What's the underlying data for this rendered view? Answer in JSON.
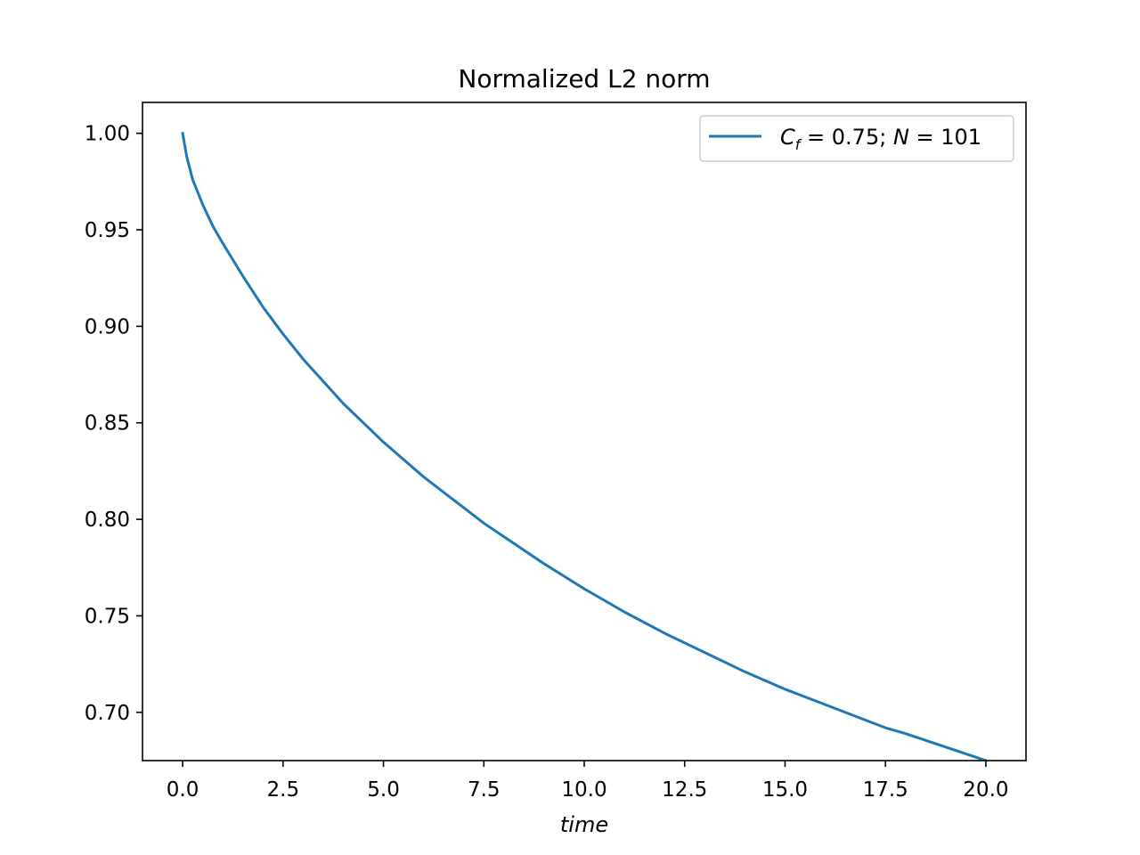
{
  "chart_data": {
    "type": "line",
    "title": "Normalized L2 norm",
    "xlabel": "time",
    "ylabel": "",
    "xlim": [
      -1.0,
      21.0
    ],
    "ylim": [
      0.675,
      1.016
    ],
    "x_ticks": [
      "0.0",
      "2.5",
      "5.0",
      "7.5",
      "10.0",
      "12.5",
      "15.0",
      "17.5",
      "20.0"
    ],
    "y_ticks": [
      "0.70",
      "0.75",
      "0.80",
      "0.85",
      "0.90",
      "0.95",
      "1.00"
    ],
    "grid": false,
    "legend_position": "top-right",
    "legend": {
      "var1": "C",
      "sub1": "f",
      "val1": " = 0.75;  ",
      "var2": "N",
      "val2": " = 101"
    },
    "series": [
      {
        "color": "#1f77b4",
        "x": [
          0,
          0.1,
          0.25,
          0.5,
          0.75,
          1.0,
          1.5,
          2.0,
          2.5,
          3.0,
          4.0,
          5.0,
          6.0,
          7.0,
          7.5,
          8.0,
          9.0,
          10.0,
          11.0,
          12.0,
          12.5,
          13.0,
          14.0,
          15.0,
          16.0,
          17.0,
          17.5,
          18.0,
          19.0,
          20.0
        ],
        "y": [
          1.0,
          0.988,
          0.976,
          0.963,
          0.952,
          0.943,
          0.926,
          0.91,
          0.896,
          0.883,
          0.86,
          0.84,
          0.822,
          0.806,
          0.798,
          0.791,
          0.777,
          0.764,
          0.752,
          0.741,
          0.736,
          0.731,
          0.721,
          0.712,
          0.704,
          0.696,
          0.692,
          0.689,
          0.682,
          0.675
        ]
      }
    ]
  }
}
